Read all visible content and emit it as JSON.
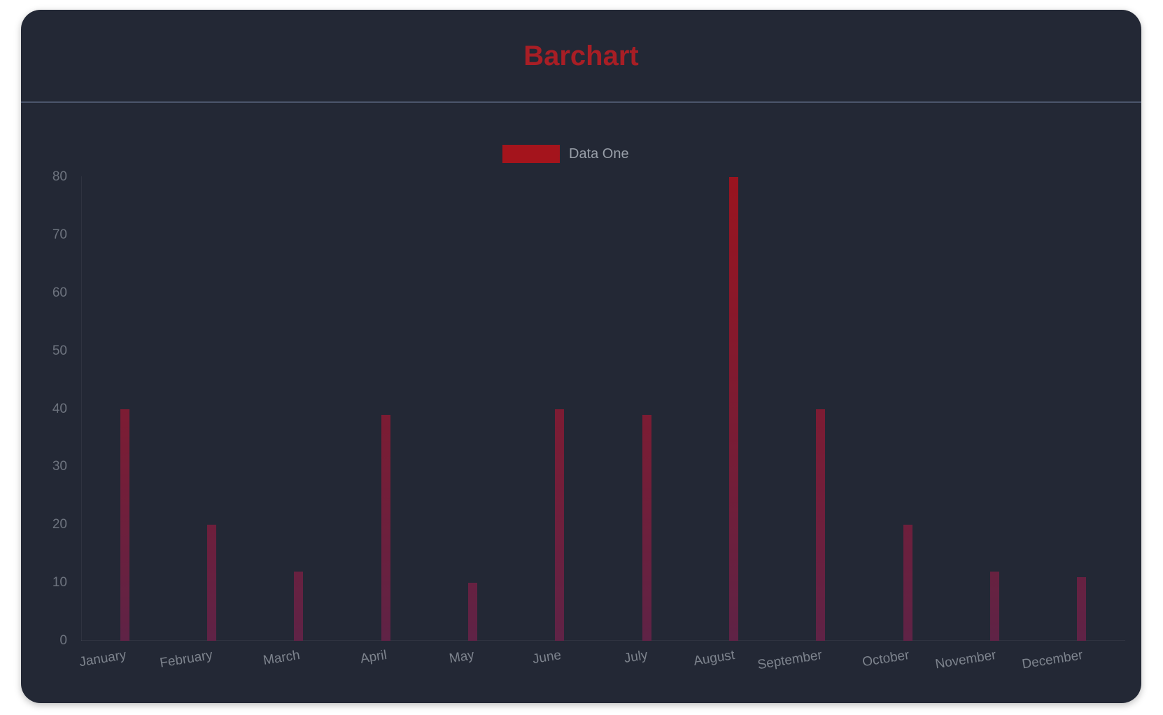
{
  "header": {
    "title_color": "#a81e25"
  },
  "panel": {
    "background": "#232835",
    "divider_color": "#6e7a98"
  },
  "chart_data": {
    "type": "bar",
    "title": "Barchart",
    "categories": [
      "January",
      "February",
      "March",
      "April",
      "May",
      "June",
      "July",
      "August",
      "September",
      "October",
      "November",
      "December"
    ],
    "series": [
      {
        "name": "Data One",
        "values": [
          40,
          20,
          12,
          39,
          10,
          40,
          39,
          80,
          40,
          20,
          12,
          11
        ]
      }
    ],
    "xlabel": "",
    "ylabel": "",
    "ylim": [
      0,
      80
    ],
    "yticks": [
      0,
      10,
      20,
      30,
      40,
      50,
      60,
      70,
      80
    ],
    "grid": false,
    "legend_position": "top-center",
    "legend_swatch_color": "#a4141c",
    "bar_gradient": {
      "top": "#9a141f",
      "bottom": "#5f2346"
    },
    "axis_text_color": "#6d737e"
  }
}
